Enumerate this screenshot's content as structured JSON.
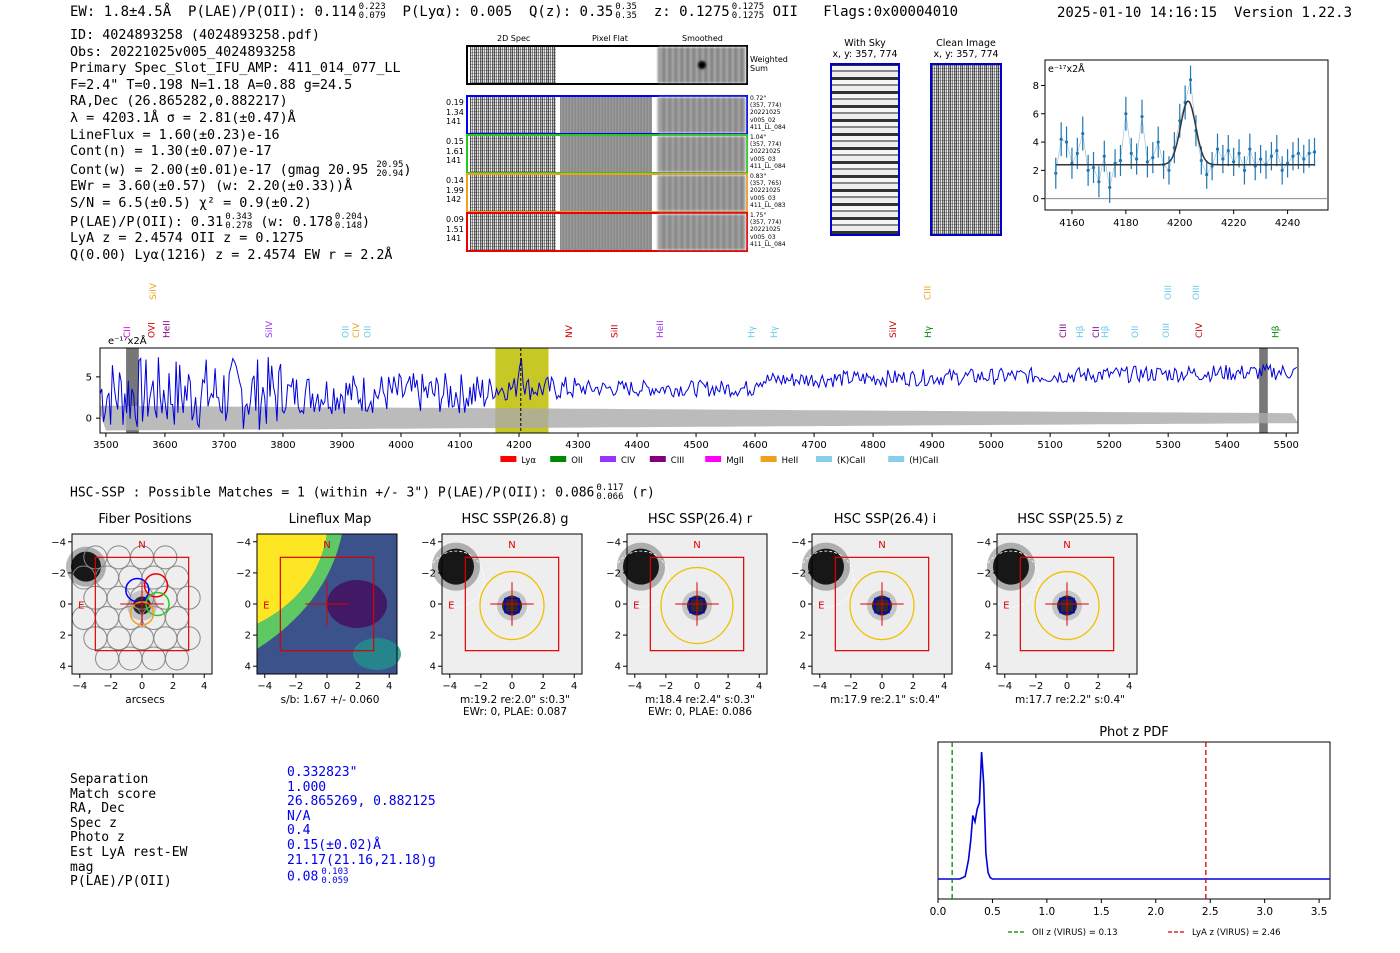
{
  "header": {
    "ew": "EW: 1.8±4.5Å",
    "plae": "P(LAE)/P(OII): 0.114",
    "plae_hi": "0.223",
    "plae_lo": "0.079",
    "plya": "P(Lyα): 0.005",
    "q": "Q(z): 0.35",
    "q_hi": "0.35",
    "q_lo": "0.35",
    "z": "z: 0.1275",
    "z_hi": "0.1275",
    "z_lo": "0.1275",
    "z_line": "OII",
    "flags": "Flags:0x00004010",
    "timestamp": "2025-01-10 14:16:15",
    "version": "Version 1.22.3"
  },
  "info": {
    "line1": "ID: 4024893258 (4024893258.pdf)",
    "line2": "Obs: 20221025v005_4024893258",
    "line3": "Primary Spec_Slot_IFU_AMP: 411_014_077_LL",
    "line4": "F=2.4\"  T=0.198  N=1.18  A=0.88  g=24.5",
    "line5": "RA,Dec (26.865282,0.882217)",
    "line6": "λ = 4203.1Å  σ = 2.81(±0.47)Å",
    "line7": "LineFlux = 1.60(±0.23)e-16",
    "line8": "Cont(n) = 1.30(±0.07)e-17",
    "line9": "Cont(w) = 2.00(±0.01)e-17 (gmag 20.95",
    "line9_hi": "20.95",
    "line9_lo": "20.94",
    "line9_end": ")",
    "line10": "EWr = 3.60(±0.57) (w: 2.20(±0.33))Å",
    "line11": "S/N = 6.5(±0.5)  χ² = 0.9(±0.2)",
    "line12": "P(LAE)/P(OII): 0.31",
    "line12_hi": "0.343",
    "line12_lo": "0.278",
    "line12_w": "(w: 0.178",
    "line12_whi": "0.204",
    "line12_wlo": "0.148",
    "line12_end": ")",
    "line13": "LyA z = 2.4574  OII z = 0.1275",
    "line14": "Q(0.00) Lyα(1216) z = 2.4574  EW r = 2.2Å"
  },
  "cutouts": {
    "headers": [
      "2D Spec",
      "Pixel Flat",
      "Smoothed"
    ],
    "weighted_label": "Weighted\nSum",
    "rows": [
      {
        "stats": [
          "0.19",
          "1.34",
          "141"
        ],
        "note": [
          "0.72\"",
          "(357, 774)",
          "20221025",
          "v005_02",
          "411_LL_084"
        ],
        "color": "#0000ff"
      },
      {
        "stats": [
          "0.15",
          "1.61",
          "141"
        ],
        "note": [
          "1.04\"",
          "(357, 774)",
          "20221025",
          "v005_03",
          "411_LL_084"
        ],
        "color": "#22cc22"
      },
      {
        "stats": [
          "0.14",
          "1.99",
          "142"
        ],
        "note": [
          "0.83\"",
          "(357, 765)",
          "20221025",
          "v005_03",
          "411_LL_083"
        ],
        "color": "#f0a020"
      },
      {
        "stats": [
          "0.09",
          "1.51",
          "141"
        ],
        "note": [
          "1.75\"",
          "(357, 774)",
          "20221025",
          "v005_03",
          "411_LL_084"
        ],
        "color": "#ee0000"
      }
    ]
  },
  "sky": {
    "with_sky": "With Sky",
    "with_sky_xy": "x, y: 357, 774",
    "clean": "Clean Image",
    "clean_xy": "x, y: 357, 774"
  },
  "zoom_chart": {
    "type": "line",
    "unit_label": "e⁻¹⁷x2Å",
    "xlim": [
      4150,
      4255
    ],
    "ylim": [
      -0.8,
      9.8
    ],
    "xticks": [
      4160,
      4180,
      4200,
      4220,
      4240
    ],
    "yticks": [
      0,
      2,
      4,
      6,
      8
    ],
    "x": [
      4154,
      4156,
      4158,
      4160,
      4162,
      4164,
      4166,
      4168,
      4170,
      4172,
      4174,
      4176,
      4178,
      4180,
      4182,
      4184,
      4186,
      4188,
      4190,
      4192,
      4194,
      4196,
      4198,
      4200,
      4202,
      4204,
      4206,
      4208,
      4210,
      4212,
      4214,
      4216,
      4218,
      4220,
      4222,
      4224,
      4226,
      4228,
      4230,
      4232,
      4234,
      4236,
      4238,
      4240,
      4242,
      4244,
      4246,
      4248,
      4250
    ],
    "y": [
      1.8,
      4.2,
      4.0,
      2.5,
      3.2,
      4.6,
      2.0,
      2.2,
      1.2,
      3.0,
      0.8,
      2.5,
      2.7,
      6.0,
      3.2,
      2.8,
      5.8,
      2.6,
      2.9,
      4.0,
      2.4,
      2.0,
      3.6,
      5.5,
      6.8,
      8.4,
      4.8,
      2.7,
      1.7,
      2.3,
      3.5,
      2.8,
      3.4,
      2.6,
      3.2,
      2.0,
      3.5,
      2.3,
      2.8,
      2.4,
      3.0,
      3.4,
      2.0,
      2.5,
      3.0,
      3.2,
      2.8,
      3.2,
      3.3
    ],
    "err": [
      1.1,
      1.2,
      1.1,
      1.1,
      1.1,
      1.2,
      1.1,
      1.1,
      1.1,
      1.1,
      1.1,
      1.0,
      1.1,
      1.2,
      1.1,
      1.1,
      1.2,
      1.1,
      1.1,
      1.1,
      1.0,
      1.0,
      1.1,
      1.2,
      1.2,
      1.0,
      1.1,
      1.0,
      1.0,
      1.0,
      1.1,
      1.0,
      1.1,
      1.0,
      1.0,
      1.0,
      1.1,
      1.0,
      1.0,
      1.0,
      1.0,
      1.1,
      1.0,
      1.0,
      1.0,
      1.1,
      1.0,
      1.0,
      1.0
    ],
    "fit": {
      "baseline": 2.4,
      "peak": 6.9,
      "center": 4203.1,
      "sigma": 2.81
    }
  },
  "full_chart": {
    "type": "line",
    "unit_label": "e⁻¹⁷x2Å",
    "xlim": [
      3490,
      5520
    ],
    "ylim": [
      -1.8,
      8.5
    ],
    "xticks": [
      3500,
      3600,
      3700,
      3800,
      3900,
      4000,
      4100,
      4200,
      4300,
      4400,
      4500,
      4600,
      4700,
      4800,
      4900,
      5000,
      5100,
      5200,
      5300,
      5400,
      5500
    ],
    "yticks": [
      0,
      5
    ],
    "highlight": [
      4160,
      4250
    ],
    "line_center": 4203,
    "masked": [
      [
        3535,
        3555
      ],
      [
        5455,
        5468
      ]
    ],
    "emission_lines": [
      {
        "name": "CII",
        "w": 3536,
        "color": "#dd00dd",
        "row": "low"
      },
      {
        "name": "OVI",
        "w": 3577,
        "color": "#cc0000",
        "row": "low"
      },
      {
        "name": "SiIV",
        "w": 3580,
        "color": "#f0a020",
        "row": "high"
      },
      {
        "name": "HeII",
        "w": 3603,
        "color": "#800080",
        "row": "low"
      },
      {
        "name": "SiIV",
        "w": 3776,
        "color": "#9933ff",
        "row": "low"
      },
      {
        "name": "OII",
        "w": 3906,
        "color": "#66ccee",
        "row": "low"
      },
      {
        "name": "CIV",
        "w": 3924,
        "color": "#f0a020",
        "row": "low"
      },
      {
        "name": "OII",
        "w": 3943,
        "color": "#66ccee",
        "row": "low"
      },
      {
        "name": "NV",
        "w": 4285,
        "color": "#cc0000",
        "row": "low"
      },
      {
        "name": "SiII",
        "w": 4362,
        "color": "#cc0000",
        "row": "low"
      },
      {
        "name": "HeII",
        "w": 4439,
        "color": "#9933ff",
        "row": "low"
      },
      {
        "name": "Hγ",
        "w": 4594,
        "color": "#66ccee",
        "row": "low"
      },
      {
        "name": "Hγ",
        "w": 4632,
        "color": "#66ccee",
        "row": "low"
      },
      {
        "name": "SiIV",
        "w": 4834,
        "color": "#cc0000",
        "row": "low"
      },
      {
        "name": "CIII",
        "w": 4892,
        "color": "#f0a020",
        "row": "high"
      },
      {
        "name": "Hγ",
        "w": 4893,
        "color": "#008800",
        "row": "low"
      },
      {
        "name": "CIII",
        "w": 5122,
        "color": "#800080",
        "row": "low"
      },
      {
        "name": "Hβ",
        "w": 5151,
        "color": "#66ccee",
        "row": "low"
      },
      {
        "name": "CII",
        "w": 5178,
        "color": "#800080",
        "row": "low"
      },
      {
        "name": "Hβ",
        "w": 5193,
        "color": "#66ccee",
        "row": "low"
      },
      {
        "name": "OII",
        "w": 5244,
        "color": "#66ccee",
        "row": "low"
      },
      {
        "name": "OIII",
        "w": 5296,
        "color": "#66ccee",
        "row": "low"
      },
      {
        "name": "OIII",
        "w": 5300,
        "color": "#66ccee",
        "row": "high"
      },
      {
        "name": "OIII",
        "w": 5347,
        "color": "#66ccee",
        "row": "high"
      },
      {
        "name": "CIV",
        "w": 5352,
        "color": "#cc0000",
        "row": "low"
      },
      {
        "name": "Hβ",
        "w": 5482,
        "color": "#008800",
        "row": "low"
      }
    ],
    "legend": [
      {
        "name": "Lyα",
        "color": "#ff0000"
      },
      {
        "name": "OII",
        "color": "#008800"
      },
      {
        "name": "CIV",
        "color": "#9933ff"
      },
      {
        "name": "CIII",
        "color": "#800080"
      },
      {
        "name": "MgII",
        "color": "#ff00ff"
      },
      {
        "name": "HeII",
        "color": "#f0a020"
      },
      {
        "name": "(K)CaII",
        "color": "#87ceeb"
      },
      {
        "name": "(H)CaII",
        "color": "#87ceeb"
      }
    ]
  },
  "hsc": {
    "summary": "HSC-SSP : Possible Matches = 1 (within +/- 3\")  P(LAE)/P(OII): 0.086",
    "sum_hi": "0.117",
    "sum_lo": "0.066",
    "sum_band": "(r)",
    "ticks": [
      "−4",
      "−2",
      "0",
      "2",
      "4"
    ],
    "north": "N",
    "east": "E",
    "panels": [
      {
        "title": "Fiber Positions",
        "cap1": "arcsecs",
        "cap2": ""
      },
      {
        "title": "Lineflux Map",
        "cap1": "s/b: 1.67 +/- 0.060",
        "cap2": ""
      },
      {
        "title": "HSC SSP(26.8) g",
        "cap1": "m:19.2  re:2.0\"  s:0.3\"",
        "cap2": "EWr: 0, PLAE: 0.087"
      },
      {
        "title": "HSC SSP(26.4) r",
        "cap1": "m:18.4  re:2.4\"  s:0.3\"",
        "cap2": "EWr: 0, PLAE: 0.086"
      },
      {
        "title": "HSC SSP(26.4) i",
        "cap1": "m:17.9  re:2.1\"  s:0.4\"",
        "cap2": ""
      },
      {
        "title": "HSC SSP(25.5) z",
        "cap1": "m:17.7  re:2.2\"  s:0.4\"",
        "cap2": ""
      }
    ]
  },
  "match": {
    "labels": [
      "Separation",
      "Match score",
      "RA, Dec",
      "Spec z",
      "Photo z",
      "Est LyA rest-EW",
      "mag",
      "P(LAE)/P(OII)"
    ],
    "values": [
      "0.332823\"",
      "1.000",
      "26.865269, 0.882125",
      "N/A",
      "0.4",
      "0.15(±0.02)Å",
      "21.17(21.16,21.18)g",
      "0.08"
    ],
    "plae_hi": "0.103",
    "plae_lo": "0.059"
  },
  "photz_chart": {
    "type": "line",
    "title": "Phot z PDF",
    "xlim": [
      0,
      3.6
    ],
    "xticks": [
      "0.0",
      "0.5",
      "1.0",
      "1.5",
      "2.0",
      "2.5",
      "3.0",
      "3.5"
    ],
    "x": [
      0,
      0.2,
      0.25,
      0.28,
      0.3,
      0.32,
      0.34,
      0.36,
      0.38,
      0.4,
      0.42,
      0.44,
      0.46,
      0.48,
      0.5,
      0.55,
      3.6
    ],
    "y": [
      0,
      0,
      0.02,
      0.15,
      0.3,
      0.5,
      0.45,
      0.55,
      0.6,
      1.0,
      0.75,
      0.2,
      0.05,
      0.01,
      0,
      0,
      0
    ],
    "oii_z": 0.13,
    "lya_z": 2.46,
    "legend": [
      {
        "text": "OII z (VIRUS) = 0.13",
        "color": "#008800"
      },
      {
        "text": "LyA z (VIRUS) = 2.46",
        "color": "#dd0000"
      }
    ]
  }
}
